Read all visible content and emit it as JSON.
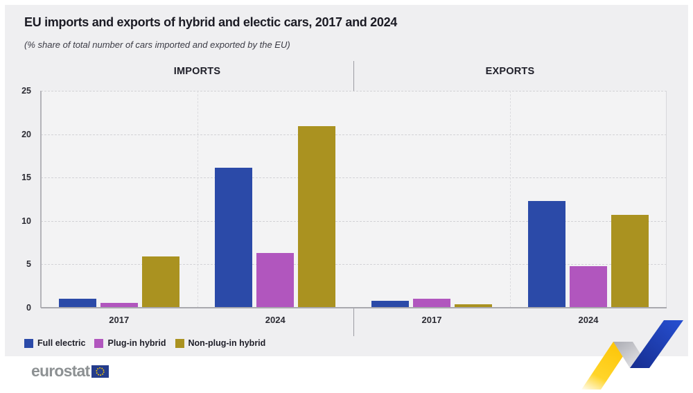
{
  "header": {
    "title": "EU imports and exports of hybrid and electic cars, 2017 and 2024",
    "subtitle": "(% share of total number of cars imported and exported by the EU)"
  },
  "footer": {
    "brand": "eurostat"
  },
  "brand_colors": {
    "ribbon_yellow": "#ffd012",
    "ribbon_gray": "#c2c3c9",
    "ribbon_blue": "#1e3fc0",
    "flag_navy": "#243c8c",
    "flag_stars": "#ffcc00",
    "panel_background": "#efeff1"
  },
  "chart_data": {
    "type": "bar",
    "title": "EU imports and exports of hybrid and electic cars, 2017 and 2024",
    "subtitle": "(% share of total number of cars imported and exported by the EU)",
    "ylim": [
      0,
      25
    ],
    "yticks": [
      0,
      5,
      10,
      15,
      20,
      25
    ],
    "grid": "horizontal-dashed",
    "legend_position": "bottom-left",
    "categories": [
      "2017",
      "2024"
    ],
    "series_names": [
      "Full electric",
      "Plug-in hybrid",
      "Non-plug-in hybrid"
    ],
    "series_colors": [
      "#2b4aa8",
      "#b156be",
      "#aa9220"
    ],
    "panels": [
      {
        "label": "IMPORTS",
        "series": [
          {
            "name": "Full electric",
            "values": [
              1.0,
              16.1
            ]
          },
          {
            "name": "Plug-in hybrid",
            "values": [
              0.6,
              6.3
            ]
          },
          {
            "name": "Non-plug-in hybrid",
            "values": [
              5.9,
              20.9
            ]
          }
        ]
      },
      {
        "label": "EXPORTS",
        "series": [
          {
            "name": "Full electric",
            "values": [
              0.8,
              12.3
            ]
          },
          {
            "name": "Plug-in hybrid",
            "values": [
              1.0,
              4.8
            ]
          },
          {
            "name": "Non-plug-in hybrid",
            "values": [
              0.4,
              10.7
            ]
          }
        ]
      }
    ]
  }
}
